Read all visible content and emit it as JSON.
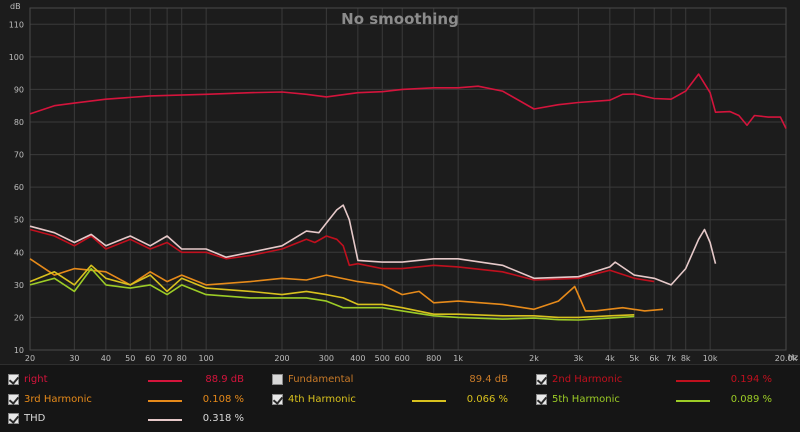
{
  "chart_data": {
    "type": "line",
    "title": "No smoothing",
    "yunit": "dB",
    "xunit": "Hz",
    "ylim": [
      10,
      115
    ],
    "xlim": [
      20,
      20000
    ],
    "xscale": "log",
    "grid": true,
    "yticks": [
      10,
      20,
      30,
      40,
      50,
      60,
      70,
      80,
      90,
      100,
      110
    ],
    "xticks": [
      {
        "v": 20,
        "l": "20"
      },
      {
        "v": 30,
        "l": "30"
      },
      {
        "v": 40,
        "l": "40"
      },
      {
        "v": 50,
        "l": "50"
      },
      {
        "v": 60,
        "l": "60"
      },
      {
        "v": 70,
        "l": "70"
      },
      {
        "v": 80,
        "l": "80"
      },
      {
        "v": 100,
        "l": "100"
      },
      {
        "v": 200,
        "l": "200"
      },
      {
        "v": 300,
        "l": "300"
      },
      {
        "v": 400,
        "l": "400"
      },
      {
        "v": 500,
        "l": "500"
      },
      {
        "v": 600,
        "l": "600"
      },
      {
        "v": 800,
        "l": "800"
      },
      {
        "v": 1000,
        "l": "1k"
      },
      {
        "v": 2000,
        "l": "2k"
      },
      {
        "v": 3000,
        "l": "3k"
      },
      {
        "v": 4000,
        "l": "4k"
      },
      {
        "v": 5000,
        "l": "5k"
      },
      {
        "v": 6000,
        "l": "6k"
      },
      {
        "v": 7000,
        "l": "7k"
      },
      {
        "v": 8000,
        "l": "8k"
      },
      {
        "v": 10000,
        "l": "10k"
      },
      {
        "v": 20000,
        "l": "20.0k"
      }
    ],
    "series": [
      {
        "name": "right",
        "color": "#d4143c",
        "points": [
          [
            20,
            82.5
          ],
          [
            25,
            85
          ],
          [
            30,
            85.8
          ],
          [
            40,
            87
          ],
          [
            60,
            88
          ],
          [
            100,
            88.5
          ],
          [
            150,
            89
          ],
          [
            200,
            89.2
          ],
          [
            250,
            88.5
          ],
          [
            300,
            87.7
          ],
          [
            400,
            89
          ],
          [
            500,
            89.3
          ],
          [
            600,
            90
          ],
          [
            800,
            90.5
          ],
          [
            1000,
            90.5
          ],
          [
            1200,
            91
          ],
          [
            1500,
            89.5
          ],
          [
            2000,
            84
          ],
          [
            2500,
            85.3
          ],
          [
            3000,
            86
          ],
          [
            4000,
            86.7
          ],
          [
            4500,
            88.5
          ],
          [
            5000,
            88.6
          ],
          [
            6000,
            87.2
          ],
          [
            7000,
            87
          ],
          [
            8000,
            89.5
          ],
          [
            9000,
            94.7
          ],
          [
            10000,
            89
          ],
          [
            10500,
            83
          ],
          [
            12000,
            83.2
          ],
          [
            13000,
            82
          ],
          [
            14000,
            79
          ],
          [
            15000,
            82
          ],
          [
            17000,
            81.5
          ],
          [
            19000,
            81.5
          ],
          [
            20000,
            78
          ]
        ]
      },
      {
        "name": "2nd Harmonic",
        "color": "#c0101e",
        "points": [
          [
            20,
            47
          ],
          [
            25,
            45
          ],
          [
            30,
            42
          ],
          [
            35,
            45
          ],
          [
            40,
            41
          ],
          [
            50,
            44
          ],
          [
            60,
            41
          ],
          [
            70,
            43
          ],
          [
            80,
            40
          ],
          [
            100,
            40
          ],
          [
            120,
            38
          ],
          [
            150,
            39
          ],
          [
            200,
            41
          ],
          [
            250,
            44
          ],
          [
            270,
            43
          ],
          [
            300,
            45
          ],
          [
            330,
            44
          ],
          [
            350,
            42
          ],
          [
            370,
            36
          ],
          [
            400,
            36.5
          ],
          [
            500,
            35
          ],
          [
            600,
            35
          ],
          [
            800,
            36
          ],
          [
            1000,
            35.5
          ],
          [
            1500,
            34
          ],
          [
            2000,
            31.5
          ],
          [
            3000,
            32
          ],
          [
            4000,
            34.5
          ],
          [
            5000,
            32
          ],
          [
            6000,
            31
          ]
        ]
      },
      {
        "name": "3rd Harmonic",
        "color": "#e68a1a",
        "points": [
          [
            20,
            38
          ],
          [
            25,
            33
          ],
          [
            30,
            35
          ],
          [
            40,
            34
          ],
          [
            50,
            30
          ],
          [
            60,
            34
          ],
          [
            70,
            31
          ],
          [
            80,
            33
          ],
          [
            100,
            30
          ],
          [
            150,
            31
          ],
          [
            200,
            32
          ],
          [
            250,
            31.5
          ],
          [
            300,
            33
          ],
          [
            400,
            31
          ],
          [
            500,
            30
          ],
          [
            600,
            27
          ],
          [
            700,
            28
          ],
          [
            800,
            24.5
          ],
          [
            1000,
            25
          ],
          [
            1500,
            24
          ],
          [
            2000,
            22.5
          ],
          [
            2500,
            25
          ],
          [
            2900,
            29.5
          ],
          [
            3200,
            22
          ],
          [
            3500,
            22
          ],
          [
            4500,
            23
          ],
          [
            5500,
            22
          ],
          [
            6500,
            22.5
          ]
        ]
      },
      {
        "name": "4th Harmonic",
        "color": "#d8c11e",
        "points": [
          [
            20,
            31
          ],
          [
            25,
            34
          ],
          [
            30,
            30
          ],
          [
            35,
            36
          ],
          [
            40,
            32
          ],
          [
            50,
            30
          ],
          [
            60,
            33
          ],
          [
            70,
            28
          ],
          [
            80,
            32
          ],
          [
            100,
            29
          ],
          [
            150,
            28
          ],
          [
            200,
            27
          ],
          [
            250,
            28
          ],
          [
            300,
            27
          ],
          [
            350,
            26
          ],
          [
            400,
            24
          ],
          [
            500,
            24
          ],
          [
            600,
            23
          ],
          [
            800,
            21
          ],
          [
            1000,
            21
          ],
          [
            1500,
            20.5
          ],
          [
            2000,
            20.5
          ],
          [
            2500,
            20
          ],
          [
            3000,
            20
          ],
          [
            4000,
            20.5
          ],
          [
            5000,
            20.8
          ]
        ]
      },
      {
        "name": "5th Harmonic",
        "color": "#9ccc26",
        "points": [
          [
            20,
            30
          ],
          [
            25,
            32
          ],
          [
            30,
            28
          ],
          [
            35,
            35
          ],
          [
            40,
            30
          ],
          [
            50,
            29
          ],
          [
            60,
            30
          ],
          [
            70,
            27
          ],
          [
            80,
            30
          ],
          [
            100,
            27
          ],
          [
            150,
            26
          ],
          [
            200,
            26
          ],
          [
            250,
            26
          ],
          [
            300,
            25
          ],
          [
            350,
            23
          ],
          [
            400,
            23
          ],
          [
            500,
            23
          ],
          [
            600,
            22
          ],
          [
            800,
            20.5
          ],
          [
            1000,
            20
          ],
          [
            1500,
            19.5
          ],
          [
            2000,
            19.8
          ],
          [
            2500,
            19.3
          ],
          [
            3000,
            19.2
          ],
          [
            4000,
            19.8
          ],
          [
            5000,
            20.3
          ]
        ]
      },
      {
        "name": "THD",
        "color": "#e6c9c9",
        "points": [
          [
            20,
            48
          ],
          [
            25,
            46
          ],
          [
            30,
            43
          ],
          [
            35,
            45.5
          ],
          [
            40,
            42
          ],
          [
            50,
            45
          ],
          [
            60,
            42
          ],
          [
            70,
            45
          ],
          [
            80,
            41
          ],
          [
            100,
            41
          ],
          [
            120,
            38.5
          ],
          [
            150,
            40
          ],
          [
            200,
            42
          ],
          [
            250,
            46.5
          ],
          [
            280,
            46
          ],
          [
            300,
            49
          ],
          [
            330,
            53
          ],
          [
            350,
            54.5
          ],
          [
            370,
            50
          ],
          [
            400,
            37.5
          ],
          [
            500,
            37
          ],
          [
            600,
            37
          ],
          [
            800,
            38
          ],
          [
            1000,
            38
          ],
          [
            1500,
            36
          ],
          [
            2000,
            32
          ],
          [
            3000,
            32.5
          ],
          [
            4000,
            35.5
          ],
          [
            4200,
            37
          ],
          [
            5000,
            33
          ],
          [
            6000,
            32
          ],
          [
            7000,
            30
          ],
          [
            8000,
            35
          ],
          [
            9000,
            44
          ],
          [
            9500,
            47
          ],
          [
            10000,
            43
          ],
          [
            10500,
            36.5
          ]
        ]
      }
    ]
  },
  "legend": [
    {
      "name": "right",
      "value": "88.9 dB",
      "checked": true,
      "color": "#d4143c",
      "text_color": "#d4143c"
    },
    {
      "name": "Fundamental",
      "value": "89.4 dB",
      "checked": false,
      "color": "",
      "text_color": "#c87a28"
    },
    {
      "name": "2nd Harmonic",
      "value": "0.194 %",
      "checked": true,
      "color": "#c0101e",
      "text_color": "#c0101e"
    },
    {
      "name": "3rd Harmonic",
      "value": "0.108 %",
      "checked": true,
      "color": "#e68a1a",
      "text_color": "#e68a1a"
    },
    {
      "name": "4th Harmonic",
      "value": "0.066 %",
      "checked": true,
      "color": "#d8c11e",
      "text_color": "#d8c11e"
    },
    {
      "name": "5th Harmonic",
      "value": "0.089 %",
      "checked": true,
      "color": "#9ccc26",
      "text_color": "#9ccc26"
    },
    {
      "name": "THD",
      "value": "0.318 %",
      "checked": true,
      "color": "#e6c9c9",
      "text_color": "#d9d9d9"
    }
  ]
}
